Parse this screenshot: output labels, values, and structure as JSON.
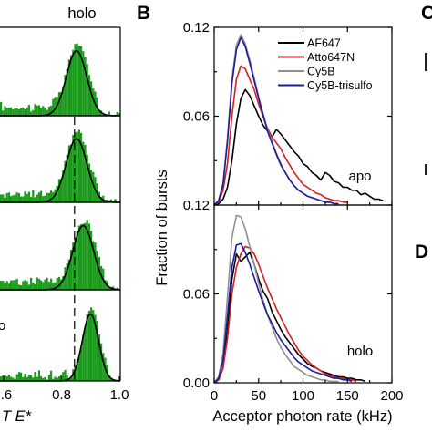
{
  "panel_labels": {
    "b": "B",
    "c": "C",
    "d": "D"
  },
  "panel_a": {
    "title": "holo",
    "xlabel_visible": "T E*",
    "x_ticks": [
      ".6",
      "0.8",
      "1.0"
    ],
    "x_tick_values": [
      0.6,
      0.8,
      1.0
    ],
    "xlim": [
      0.6,
      1.0
    ],
    "subplot_count": 4,
    "dashed_line_x": 0.845,
    "partial_label": "o",
    "peak_centers": [
      0.852,
      0.852,
      0.875,
      0.9
    ],
    "peak_widths": [
      0.035,
      0.036,
      0.036,
      0.028
    ],
    "colors": {
      "bars": "#1a9a1a",
      "fit": "#000000"
    }
  },
  "chart_data": [
    {
      "type": "line",
      "panel": "B (apo)",
      "annotation": "apo",
      "ylabel": "Fraction of bursts",
      "xlim": [
        0,
        200
      ],
      "ylim": [
        0,
        0.12
      ],
      "y_ticks": [
        "0.12",
        "0.06"
      ],
      "y_tick_values": [
        0.12,
        0.06
      ],
      "series": [
        {
          "name": "AF647",
          "color": "#000000",
          "x": [
            0,
            5,
            10,
            15,
            20,
            25,
            30,
            35,
            40,
            45,
            50,
            55,
            60,
            65,
            70,
            75,
            80,
            85,
            90,
            95,
            100,
            105,
            110,
            115,
            120,
            125,
            130,
            135,
            140,
            145,
            150,
            155,
            160,
            165,
            170,
            175,
            180,
            185,
            190
          ],
          "y": [
            0,
            0.001,
            0.004,
            0.012,
            0.03,
            0.055,
            0.072,
            0.078,
            0.074,
            0.067,
            0.06,
            0.054,
            0.05,
            0.046,
            0.051,
            0.048,
            0.044,
            0.04,
            0.036,
            0.033,
            0.028,
            0.026,
            0.022,
            0.02,
            0.017,
            0.022,
            0.02,
            0.016,
            0.015,
            0.012,
            0.012,
            0.01,
            0.01,
            0.007,
            0.008,
            0.006,
            0.004,
            0.004,
            0.003
          ]
        },
        {
          "name": "Atto647N",
          "color": "#d42020",
          "x": [
            0,
            5,
            10,
            15,
            20,
            25,
            30,
            35,
            40,
            45,
            50,
            55,
            60,
            65,
            70,
            75,
            80,
            85,
            90,
            95,
            100,
            105,
            110,
            115,
            120,
            125,
            130,
            135,
            140,
            145,
            150
          ],
          "y": [
            0,
            0.002,
            0.01,
            0.028,
            0.06,
            0.085,
            0.094,
            0.092,
            0.085,
            0.078,
            0.068,
            0.06,
            0.052,
            0.046,
            0.042,
            0.038,
            0.032,
            0.027,
            0.022,
            0.018,
            0.014,
            0.012,
            0.01,
            0.008,
            0.007,
            0.005,
            0.004,
            0.003,
            0.003,
            0.002,
            0.002
          ]
        },
        {
          "name": "Cy5B",
          "color": "#909090",
          "x": [
            0,
            5,
            10,
            15,
            20,
            25,
            30,
            35,
            40,
            45,
            50,
            55,
            60,
            65,
            70,
            75,
            80,
            85,
            90,
            95,
            100,
            105,
            110,
            115,
            120,
            125,
            130,
            135,
            140
          ],
          "y": [
            0,
            0.003,
            0.015,
            0.045,
            0.085,
            0.108,
            0.115,
            0.109,
            0.098,
            0.086,
            0.073,
            0.062,
            0.051,
            0.043,
            0.035,
            0.028,
            0.022,
            0.017,
            0.013,
            0.01,
            0.008,
            0.006,
            0.005,
            0.004,
            0.003,
            0.002,
            0.002,
            0.001,
            0.001
          ]
        },
        {
          "name": "Cy5B-trisulfo",
          "color": "#1c1ca0",
          "x": [
            0,
            5,
            10,
            15,
            20,
            25,
            30,
            35,
            40,
            45,
            50,
            55,
            60,
            65,
            70,
            75,
            80,
            85,
            90,
            95,
            100,
            105,
            110,
            115,
            120,
            125,
            130,
            135,
            140
          ],
          "y": [
            0,
            0.003,
            0.014,
            0.043,
            0.082,
            0.105,
            0.113,
            0.107,
            0.096,
            0.084,
            0.072,
            0.061,
            0.05,
            0.042,
            0.034,
            0.027,
            0.022,
            0.017,
            0.013,
            0.01,
            0.008,
            0.006,
            0.005,
            0.004,
            0.003,
            0.002,
            0.002,
            0.001,
            0.001
          ]
        }
      ]
    },
    {
      "type": "line",
      "panel": "B (holo)",
      "annotation": "holo",
      "ylabel": "Fraction of bursts",
      "xlabel": "Acceptor photon rate (kHz)",
      "xlim": [
        0,
        200
      ],
      "ylim": [
        0,
        0.12
      ],
      "x_ticks": [
        "0",
        "50",
        "100",
        "150",
        "200"
      ],
      "x_tick_values": [
        0,
        50,
        100,
        150,
        200
      ],
      "y_ticks": [
        "0.12",
        "0.06",
        "0.00"
      ],
      "y_tick_values": [
        0.12,
        0.06,
        0.0
      ],
      "series": [
        {
          "name": "AF647",
          "color": "#000000",
          "x": [
            0,
            5,
            10,
            15,
            20,
            25,
            30,
            35,
            40,
            45,
            50,
            55,
            60,
            65,
            70,
            75,
            80,
            85,
            90,
            95,
            100,
            105,
            110,
            115,
            120,
            125,
            130,
            135,
            140,
            145,
            150,
            155,
            160,
            165,
            170
          ],
          "y": [
            0,
            0.002,
            0.01,
            0.035,
            0.07,
            0.087,
            0.082,
            0.085,
            0.088,
            0.08,
            0.07,
            0.062,
            0.057,
            0.048,
            0.042,
            0.036,
            0.031,
            0.027,
            0.023,
            0.019,
            0.016,
            0.013,
            0.011,
            0.01,
            0.008,
            0.007,
            0.006,
            0.005,
            0.004,
            0.004,
            0.003,
            0.003,
            0.002,
            0.002,
            0.001
          ]
        },
        {
          "name": "Atto647N",
          "color": "#d42020",
          "x": [
            0,
            5,
            10,
            15,
            20,
            25,
            30,
            35,
            40,
            45,
            50,
            55,
            60,
            65,
            70,
            75,
            80,
            85,
            90,
            95,
            100,
            105,
            110,
            115,
            120,
            125,
            130,
            135,
            140,
            145,
            150,
            155,
            160
          ],
          "y": [
            0,
            0.002,
            0.01,
            0.03,
            0.06,
            0.078,
            0.087,
            0.092,
            0.091,
            0.087,
            0.08,
            0.072,
            0.064,
            0.057,
            0.05,
            0.044,
            0.038,
            0.032,
            0.027,
            0.022,
            0.018,
            0.015,
            0.012,
            0.01,
            0.008,
            0.006,
            0.005,
            0.004,
            0.003,
            0.003,
            0.002,
            0.002,
            0.001
          ]
        },
        {
          "name": "Cy5B",
          "color": "#909090",
          "x": [
            0,
            5,
            10,
            15,
            20,
            25,
            30,
            35,
            40,
            45,
            50,
            55,
            60,
            65,
            70,
            75,
            80,
            85,
            90,
            95,
            100,
            105,
            110,
            115,
            120,
            125,
            130,
            135,
            140
          ],
          "y": [
            0,
            0.004,
            0.02,
            0.058,
            0.098,
            0.113,
            0.112,
            0.104,
            0.092,
            0.08,
            0.067,
            0.056,
            0.046,
            0.038,
            0.03,
            0.024,
            0.019,
            0.015,
            0.011,
            0.009,
            0.007,
            0.005,
            0.004,
            0.003,
            0.002,
            0.002,
            0.001,
            0.001,
            0.001
          ]
        },
        {
          "name": "Cy5B-trisulfo",
          "color": "#1c1ca0",
          "x": [
            0,
            5,
            10,
            15,
            20,
            25,
            30,
            35,
            40,
            45,
            50,
            55,
            60,
            65,
            70,
            75,
            80,
            85,
            90,
            95,
            100,
            105,
            110,
            115,
            120,
            125,
            130,
            135,
            140,
            145,
            150,
            155
          ],
          "y": [
            0,
            0.003,
            0.015,
            0.045,
            0.078,
            0.093,
            0.094,
            0.088,
            0.08,
            0.071,
            0.062,
            0.054,
            0.046,
            0.04,
            0.034,
            0.029,
            0.025,
            0.021,
            0.017,
            0.014,
            0.012,
            0.01,
            0.008,
            0.007,
            0.006,
            0.005,
            0.004,
            0.003,
            0.003,
            0.002,
            0.002,
            0.001
          ]
        }
      ],
      "legend": {
        "placement": "top-right",
        "entries": [
          "AF647",
          "Atto647N",
          "Cy5B",
          "Cy5B-trisulfo"
        ]
      }
    }
  ]
}
